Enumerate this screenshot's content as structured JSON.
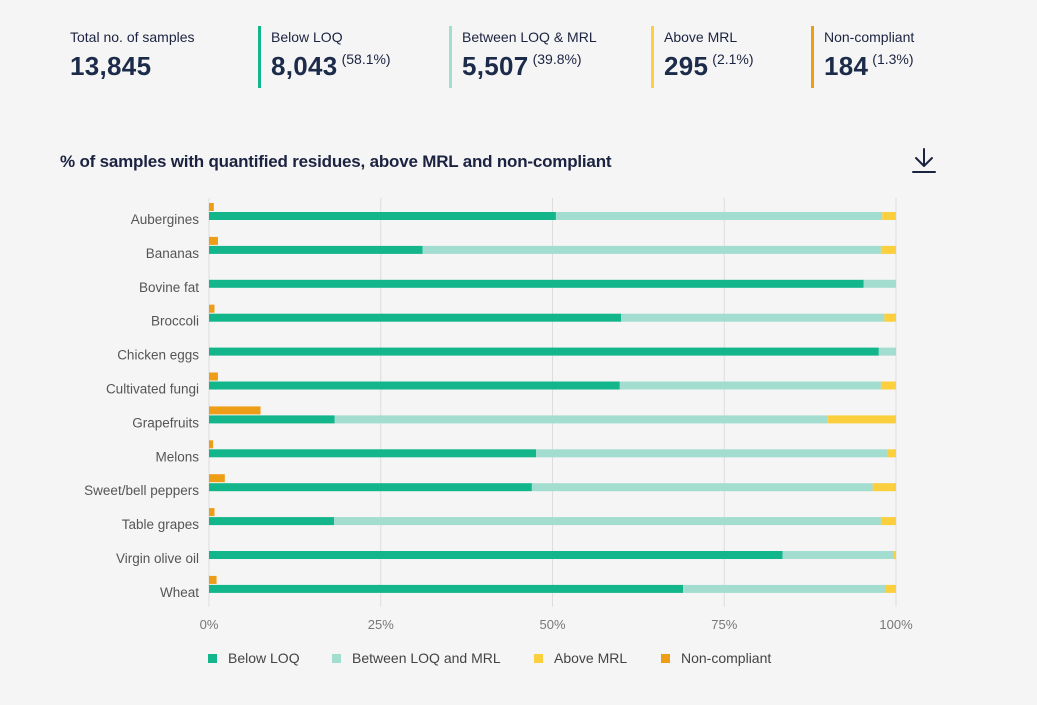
{
  "stats": [
    {
      "label": "Total no. of samples",
      "value": "13,845",
      "pct": "",
      "color": ""
    },
    {
      "label": "Below LOQ",
      "value": "8,043",
      "pct": "(58.1%)",
      "color": "#13b58b"
    },
    {
      "label": "Between LOQ & MRL",
      "value": "5,507",
      "pct": "(39.8%)",
      "color": "#a3ddd0"
    },
    {
      "label": "Above MRL",
      "value": "295",
      "pct": "(2.1%)",
      "color": "#fbcf3d"
    },
    {
      "label": "Non-compliant",
      "value": "184",
      "pct": "(1.3%)",
      "color": "#ee9d17"
    }
  ],
  "chart_title": "% of samples with quantified residues, above MRL and non-compliant",
  "download_icon": "download-icon",
  "colors": {
    "below_loq": "#13b58b",
    "between": "#a3ddd0",
    "above_mrl": "#fbcf3d",
    "non_compliant": "#ee9d17",
    "grid": "#dddddd",
    "background": "#f5f5f5"
  },
  "legend": [
    {
      "label": "Below LOQ",
      "color": "#13b58b"
    },
    {
      "label": "Between LOQ and MRL",
      "color": "#a3ddd0"
    },
    {
      "label": "Above MRL",
      "color": "#fbcf3d"
    },
    {
      "label": "Non-compliant",
      "color": "#ee9d17"
    }
  ],
  "chart_data": {
    "type": "bar",
    "orientation": "horizontal",
    "stacked": true,
    "title": "% of samples with quantified residues, above MRL and non-compliant",
    "categories": [
      "Aubergines",
      "Bananas",
      "Bovine fat",
      "Broccoli",
      "Chicken eggs",
      "Cultivated fungi",
      "Grapefruits",
      "Melons",
      "Sweet/bell peppers",
      "Table grapes",
      "Virgin olive oil",
      "Wheat"
    ],
    "x_ticks": [
      "0%",
      "25%",
      "50%",
      "75%",
      "100%"
    ],
    "xlim": [
      0,
      100
    ],
    "grid": true,
    "legend_position": "bottom",
    "series": [
      {
        "name": "Below LOQ",
        "values": [
          50.5,
          31.1,
          95.3,
          60.0,
          97.5,
          59.8,
          18.3,
          47.6,
          47.0,
          18.2,
          83.5,
          69.0
        ]
      },
      {
        "name": "Between LOQ and MRL",
        "values": [
          47.5,
          66.7,
          4.7,
          38.3,
          2.5,
          38.0,
          71.7,
          51.2,
          49.6,
          79.6,
          16.2,
          29.4
        ]
      },
      {
        "name": "Above MRL",
        "values": [
          2.0,
          2.2,
          0.0,
          1.7,
          0.0,
          2.2,
          10.0,
          1.2,
          3.4,
          2.2,
          0.3,
          1.6
        ]
      }
    ],
    "non_compliant": {
      "name": "Non-compliant",
      "values": [
        0.7,
        1.3,
        0.0,
        0.8,
        0.0,
        1.3,
        7.5,
        0.6,
        2.3,
        0.8,
        0.0,
        1.1
      ]
    }
  }
}
